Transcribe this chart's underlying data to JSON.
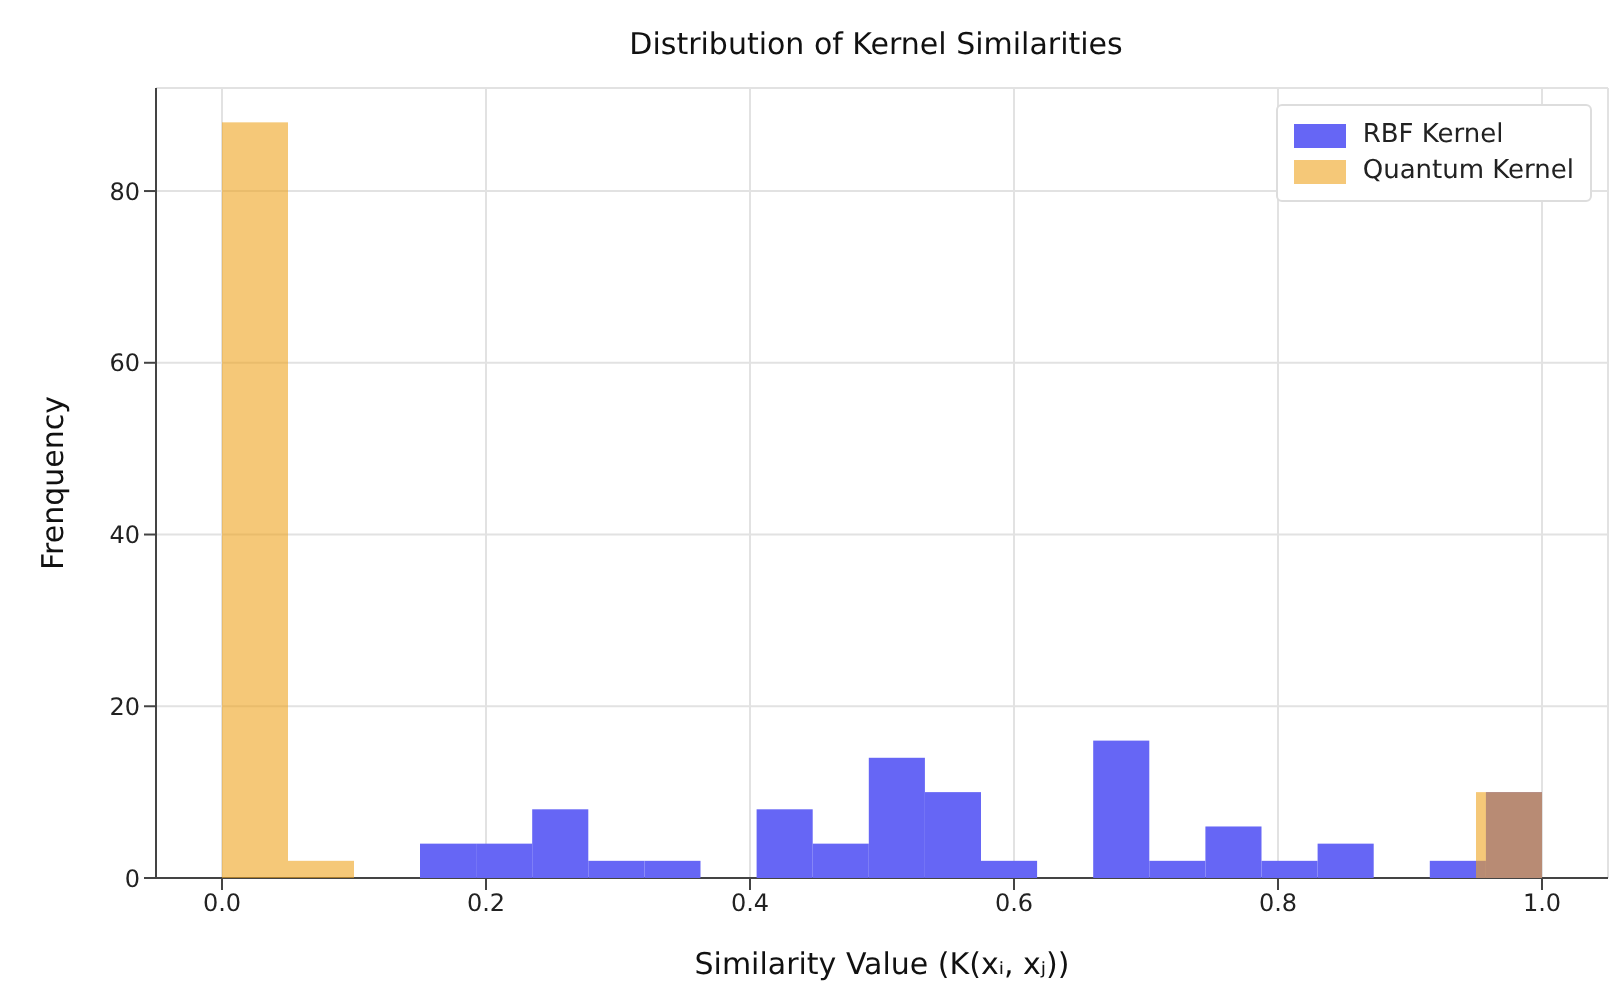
{
  "chart_data": {
    "type": "histogram",
    "title": "Distribution of Kernel Similarities",
    "xlabel": "Similarity Value (K(xᵢ, xⱼ))",
    "ylabel": "Frenquency",
    "bins": [
      0,
      0.05,
      0.1,
      0.15,
      0.2,
      0.25,
      0.3,
      0.35,
      0.4,
      0.45,
      0.5,
      0.55,
      0.6,
      0.65,
      0.7,
      0.75,
      0.8,
      0.85,
      0.9,
      0.95,
      1.0
    ],
    "series": [
      {
        "name": "RBF Kernel",
        "color": "#6666f5",
        "bins": [
          0.15,
          0.1925,
          0.235,
          0.2775,
          0.32,
          0.3625,
          0.405,
          0.4475,
          0.49,
          0.5325,
          0.575,
          0.6175,
          0.66,
          0.7025,
          0.745,
          0.7875,
          0.83,
          0.8725,
          0.915,
          0.9575,
          1.0
        ],
        "values": [
          4,
          4,
          8,
          2,
          2,
          0,
          8,
          4,
          14,
          10,
          2,
          0,
          16,
          2,
          6,
          2,
          4,
          0,
          2,
          10
        ]
      },
      {
        "name": "Quantum Kernel",
        "color": "#f5c878",
        "values": [
          88,
          2,
          0,
          0,
          0,
          0,
          0,
          0,
          0,
          0,
          0,
          0,
          0,
          0,
          0,
          0,
          0,
          0,
          0,
          10
        ]
      }
    ],
    "xlim": [
      -0.05,
      1.05
    ],
    "ylim": [
      0,
      92
    ],
    "xticks": [
      {
        "value": 0,
        "label": "0.0"
      },
      0.2,
      0.4,
      0.6,
      0.8,
      {
        "value": 1,
        "label": "1.0"
      }
    ],
    "yticks": [
      0,
      20,
      40,
      60,
      80
    ],
    "grid": true,
    "legend": "top right"
  }
}
